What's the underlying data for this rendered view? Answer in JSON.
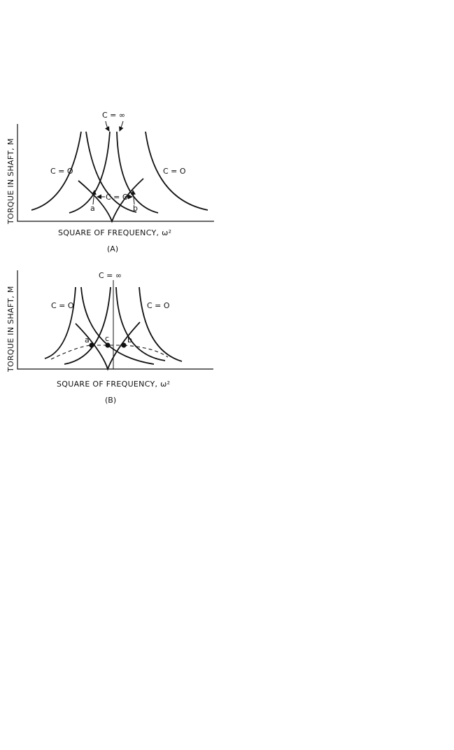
{
  "panel_a": {
    "ylabel": "TORQUE IN SHAFT, M",
    "xlabel": "SQUARE OF FREQUENCY, ω²",
    "caption": "(A)",
    "label_c_inf": "C = ∞",
    "label_c0_left": "C = O",
    "label_c0_right": "C = O",
    "label_c0_center": "C = O",
    "label_a": "a",
    "label_b": "b"
  },
  "panel_b": {
    "ylabel": "TORQUE IN SHAFT, M",
    "xlabel": "SQUARE OF FREQUENCY, ω²",
    "caption": "(B)",
    "label_c_inf": "C = ∞",
    "label_c0_left": "C = O",
    "label_c0_right": "C = O",
    "label_a": "a",
    "label_b": "b",
    "label_c": "c"
  },
  "colors": {
    "ink": "#111111",
    "background": "#ffffff"
  }
}
